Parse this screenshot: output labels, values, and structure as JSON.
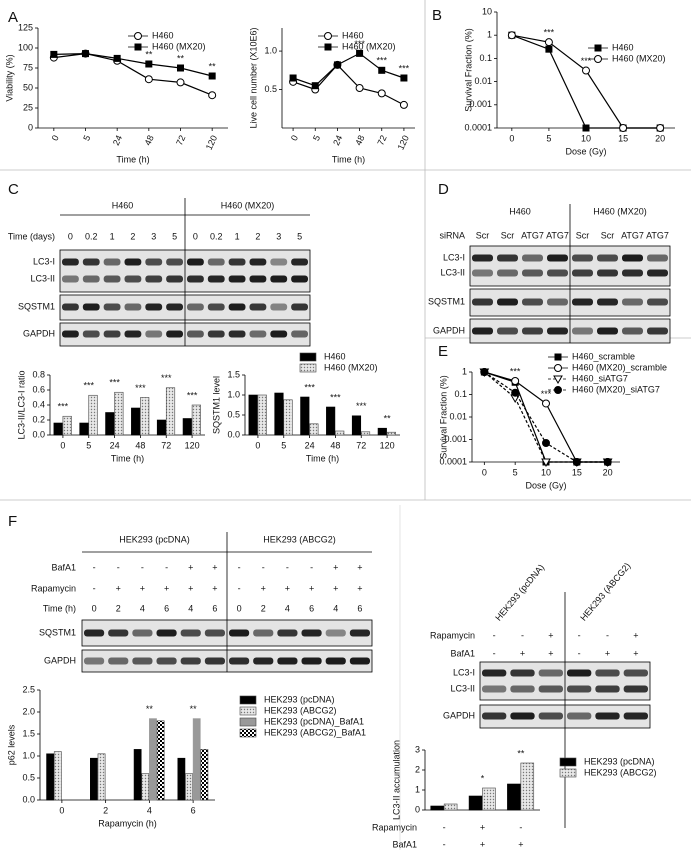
{
  "panel_labels": [
    "A",
    "B",
    "C",
    "D",
    "E",
    "F"
  ],
  "blots": {
    "C": {
      "groups": [
        "H460",
        "H460 (MX20)"
      ],
      "rows": [
        {
          "label": "Time (days)",
          "cells": [
            "0",
            "0.2",
            "1",
            "2",
            "3",
            "5",
            "0",
            "0.2",
            "1",
            "2",
            "3",
            "5"
          ]
        }
      ],
      "bands": [
        "LC3-I",
        "LC3-II",
        "SQSTM1",
        "GAPDH"
      ]
    },
    "D": {
      "groups": [
        "H460",
        "H460 (MX20)"
      ],
      "rows": [
        {
          "label": "siRNA",
          "cells": [
            "Scr",
            "Scr",
            "ATG7",
            "ATG7",
            "Scr",
            "Scr",
            "ATG7",
            "ATG7"
          ]
        }
      ],
      "bands": [
        "LC3-I",
        "LC3-II",
        "SQSTM1",
        "GAPDH"
      ]
    },
    "F_left": {
      "groups": [
        "HEK293 (pcDNA)",
        "HEK293 (ABCG2)"
      ],
      "rows": [
        {
          "label": "BafA1",
          "cells": [
            "-",
            "-",
            "-",
            "-",
            "+",
            "+",
            "-",
            "-",
            "-",
            "-",
            "+",
            "+"
          ]
        },
        {
          "label": "Rapamycin",
          "cells": [
            "-",
            "+",
            "+",
            "+",
            "+",
            "+",
            "-",
            "+",
            "+",
            "+",
            "+",
            "+"
          ]
        },
        {
          "label": "Time (h)",
          "cells": [
            "0",
            "2",
            "4",
            "6",
            "4",
            "6",
            "0",
            "2",
            "4",
            "6",
            "4",
            "6"
          ]
        }
      ],
      "bands": [
        "SQSTM1",
        "GAPDH"
      ]
    },
    "F_right": {
      "groups": [
        "HEK293 (pcDNA)",
        "HEK293 (ABCG2)"
      ],
      "rows": [
        {
          "label": "Rapamycin",
          "cells": [
            "-",
            "-",
            "+",
            "-",
            "-",
            "+"
          ]
        },
        {
          "label": "BafA1",
          "cells": [
            "-",
            "+",
            "+",
            "-",
            "+",
            "+"
          ]
        }
      ],
      "bands": [
        "LC3-I",
        "LC3-II",
        "GAPDH"
      ]
    }
  },
  "chart_data": [
    {
      "type": "line",
      "x_label": "Time (h)",
      "y_label": "Viability (%)",
      "categories": [
        "0",
        "5",
        "24",
        "48",
        "72",
        "120"
      ],
      "series": [
        {
          "name": "H460",
          "color": "#000000",
          "marker": "circle-open",
          "values": [
            88,
            93,
            84,
            61,
            57,
            41
          ]
        },
        {
          "name": "H460 (MX20)",
          "color": "#000000",
          "marker": "square",
          "values": [
            92,
            93,
            87,
            80,
            75,
            65
          ]
        }
      ],
      "ylim": [
        0,
        125
      ],
      "yticks": [
        0,
        25,
        50,
        75,
        100,
        125
      ],
      "legend": "top-right",
      "annotations": [
        {
          "text": "**",
          "category": "48"
        },
        {
          "text": "**",
          "category": "72"
        },
        {
          "text": "**",
          "category": "120"
        }
      ]
    },
    {
      "type": "line",
      "x_label": "Time (h)",
      "y_label": "Live cell number (X10E6)",
      "categories": [
        "0",
        "5",
        "24",
        "48",
        "72",
        "120"
      ],
      "series": [
        {
          "name": "H460",
          "color": "#000000",
          "marker": "circle-open",
          "values": [
            0.6,
            0.5,
            0.82,
            0.52,
            0.45,
            0.3
          ]
        },
        {
          "name": "H460 (MX20)",
          "color": "#000000",
          "marker": "square",
          "values": [
            0.65,
            0.55,
            0.82,
            0.97,
            0.75,
            0.65
          ]
        }
      ],
      "ylim": [
        0,
        1.3
      ],
      "yticks": [
        0.5,
        {
          "value": 1,
          "label": "1.0"
        }
      ],
      "legend": "top-right",
      "annotations": [
        {
          "text": "***",
          "category": "48"
        },
        {
          "text": "***",
          "category": "72"
        },
        {
          "text": "***",
          "category": "120"
        }
      ]
    },
    {
      "type": "line",
      "x_label": "Dose (Gy)",
      "y_label": "Survival Fraction (%)",
      "x": [
        0,
        5,
        10,
        15,
        20
      ],
      "xlim": [
        -2,
        22
      ],
      "xticks": [
        0,
        5,
        10,
        15,
        20
      ],
      "log_y": true,
      "series": [
        {
          "name": "H460",
          "color": "#000000",
          "marker": "square",
          "values": [
            1,
            0.25,
            0.0001,
            0.0001,
            0.0001
          ]
        },
        {
          "name": "H460 (MX20)",
          "color": "#000000",
          "marker": "circle-open",
          "values": [
            1,
            0.5,
            0.03,
            0.0001,
            0.0001
          ]
        }
      ],
      "ylim": [
        0.0001,
        10
      ],
      "yticks": [
        0.0001,
        0.001,
        0.01,
        0.1,
        1,
        10
      ],
      "legend": "top-right",
      "annotations": [
        {
          "text": "***",
          "x": 5
        },
        {
          "text": "***",
          "x": 10
        }
      ]
    },
    {
      "type": "bar",
      "x_label": "Time (h)",
      "y_label": "LC3-II/LC3-I ratio",
      "categories": [
        "0",
        "5",
        "24",
        "48",
        "72",
        "120"
      ],
      "series": [
        {
          "name": "H460",
          "color": "#000000",
          "values": [
            0.16,
            0.16,
            0.3,
            0.36,
            0.2,
            0.22
          ]
        },
        {
          "name": "H460 (MX20)",
          "color": "#888888",
          "pattern": "dots",
          "values": [
            0.25,
            0.53,
            0.57,
            0.5,
            0.63,
            0.4
          ]
        }
      ],
      "ylim": [
        0,
        0.8
      ],
      "yticks": [
        {
          "value": 0,
          "label": "0.0"
        },
        0.2,
        0.4,
        0.6,
        0.8
      ],
      "legend": "top",
      "annotations": [
        {
          "text": "***",
          "category": "0"
        },
        {
          "text": "***",
          "category": "5"
        },
        {
          "text": "***",
          "category": "24"
        },
        {
          "text": "***",
          "category": "48"
        },
        {
          "text": "***",
          "category": "72"
        },
        {
          "text": "***",
          "category": "120"
        }
      ]
    },
    {
      "type": "bar",
      "x_label": "Time (h)",
      "y_label": "SQSTM1 level",
      "categories": [
        "0",
        "5",
        "24",
        "48",
        "72",
        "120"
      ],
      "series": [
        {
          "color": "#000000",
          "values": [
            1.0,
            1.05,
            0.95,
            0.7,
            0.48,
            0.17
          ]
        },
        {
          "color": "#888888",
          "pattern": "dots",
          "values": [
            1.0,
            0.88,
            0.28,
            0.1,
            0.08,
            0.07
          ]
        }
      ],
      "ylim": [
        0,
        1.5
      ],
      "yticks": [
        {
          "value": 0,
          "label": "0.0"
        },
        0.5,
        {
          "value": 1,
          "label": "1.0"
        },
        1.5
      ],
      "annotations": [
        {
          "text": "***",
          "category": "24"
        },
        {
          "text": "***",
          "category": "48"
        },
        {
          "text": "***",
          "category": "72"
        },
        {
          "text": "**",
          "category": "120"
        }
      ]
    },
    {
      "type": "line",
      "x_label": "Dose (Gy)",
      "y_label": "Survival Fraction (%)",
      "x": [
        0,
        5,
        10,
        15,
        20
      ],
      "xlim": [
        -2,
        22
      ],
      "xticks": [
        0,
        5,
        10,
        15,
        20
      ],
      "log_y": true,
      "series": [
        {
          "name": "H460_scramble",
          "color": "#000000",
          "marker": "square",
          "values": [
            1,
            0.35,
            0.0001,
            0.0001,
            0.0001
          ]
        },
        {
          "name": "H460 (MX20)_scramble",
          "color": "#000000",
          "marker": "circle-open",
          "values": [
            1,
            0.4,
            0.04,
            0.0001,
            0.0001
          ]
        },
        {
          "name": "H460_siATG7",
          "color": "#000000",
          "marker": "triangle-open",
          "dash": true,
          "values": [
            1,
            0.07,
            0.0001,
            0.0001,
            0.0001
          ]
        },
        {
          "name": "H460 (MX20)_siATG7",
          "color": "#000000",
          "marker": "circle",
          "dash": true,
          "values": [
            1,
            0.12,
            0.0007,
            0.0001,
            0.0001
          ]
        }
      ],
      "ylim": [
        0.0001,
        1
      ],
      "yticks": [
        0.0001,
        0.001,
        0.01,
        0.1,
        1
      ],
      "legend": "top-right",
      "annotations": [
        {
          "text": "***",
          "x": 5
        },
        {
          "text": "***",
          "x": 10
        }
      ]
    },
    {
      "type": "bar",
      "x_label": "Rapamycin (h)",
      "y_label": "p62 levels",
      "categories": [
        "0",
        "2",
        "4",
        "6"
      ],
      "series": [
        {
          "name": "HEK293 (pcDNA)",
          "color": "#000000",
          "values": [
            1.05,
            0.95,
            1.15,
            0.95
          ]
        },
        {
          "name": "HEK293 (ABCG2)",
          "color": "#888888",
          "pattern": "dots",
          "values": [
            1.1,
            1.05,
            0.6,
            0.6
          ]
        },
        {
          "name": "HEK293 (pcDNA)_BafA1",
          "color": "#999999",
          "values": [
            null,
            null,
            1.85,
            1.85
          ]
        },
        {
          "name": "HEK293 (ABCG2)_BafA1",
          "color": "#000000",
          "pattern": "checker",
          "values": [
            null,
            null,
            1.8,
            1.15
          ]
        }
      ],
      "ylim": [
        0,
        2.5
      ],
      "yticks": [
        {
          "value": 0,
          "label": "0.0"
        },
        0.5,
        {
          "value": 1,
          "label": "1.0"
        },
        1.5,
        {
          "value": 2,
          "label": "2.0"
        },
        2.5
      ],
      "legend": "right",
      "annotations": [
        {
          "text": "**",
          "category": "4"
        },
        {
          "text": "**",
          "category": "6"
        }
      ]
    },
    {
      "type": "bar",
      "y_label": "LC3-II accumulation",
      "categories": [
        null,
        null,
        null
      ],
      "series": [
        {
          "name": "HEK293 (pcDNA)",
          "color": "#000000",
          "values": [
            0.2,
            0.7,
            1.3
          ]
        },
        {
          "name": "HEK293 (ABCG2)",
          "color": "#888888",
          "pattern": "dots",
          "values": [
            0.3,
            1.1,
            2.35
          ]
        }
      ],
      "ylim": [
        0,
        3
      ],
      "yticks": [
        0,
        1,
        2,
        3
      ],
      "legend": "right",
      "rows": [
        {
          "label": "Rapamycin",
          "cells": [
            "-",
            "+",
            "-"
          ]
        },
        {
          "label": "BafA1",
          "cells": [
            "-",
            "+",
            "+"
          ]
        }
      ],
      "annotations": [
        {
          "text": "*",
          "group": 1
        },
        {
          "text": "**",
          "group": 2
        }
      ]
    }
  ]
}
